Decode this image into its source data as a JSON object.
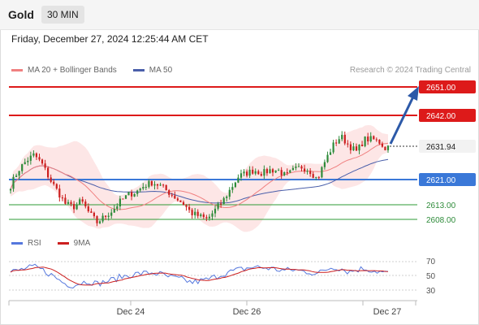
{
  "header": {
    "symbol": "Gold",
    "timeframe": "30 MIN"
  },
  "datetime": "Friday, December 27, 2024 12:25:44 AM CET",
  "legend": {
    "ma20": "MA 20 + Bollinger Bands",
    "ma50": "MA 50",
    "credit": "Research © 2024 Trading Central"
  },
  "rsi_legend": {
    "rsi": "RSI",
    "ma": "9MA"
  },
  "colors": {
    "up": "#2e8b3a",
    "down": "#cc1f1f",
    "resistance": "#dd1a1a",
    "pivot": "#3a78d8",
    "support": "#2e9b35",
    "ma20": "#f08080",
    "ma50": "#4a5faa",
    "band": "#fde2e2",
    "rsi": "#5577dd",
    "rsi_ma": "#cc1f1f",
    "arrow": "#2c59a8"
  },
  "levels": {
    "r2": "2651.00",
    "r1": "2642.00",
    "current": "2631.94",
    "pivot": "2621.00",
    "s1": "2613.00",
    "s2": "2608.00"
  },
  "x_labels": [
    "Dec 24",
    "Dec 26",
    "Dec 27"
  ],
  "rsi_ticks": [
    "70",
    "50",
    "30"
  ],
  "chart_data": {
    "type": "candlestick",
    "y_unit": "USD",
    "ylim": [
      2604,
      2653
    ],
    "price_levels": [
      2651.0,
      2642.0,
      2631.94,
      2621.0,
      2613.0,
      2608.0
    ],
    "close_path": [
      2619,
      2624,
      2627,
      2629,
      2626,
      2621,
      2617,
      2613,
      2612,
      2614,
      2610,
      2607,
      2609,
      2611,
      2614,
      2616,
      2617,
      2619,
      2620,
      2619,
      2617,
      2615,
      2613,
      2610,
      2609,
      2608,
      2611,
      2614,
      2618,
      2622,
      2623,
      2624,
      2623,
      2624,
      2624,
      2622,
      2624,
      2625,
      2624,
      2621,
      2627,
      2632,
      2635,
      2632,
      2630,
      2634,
      2634,
      2633,
      2630
    ],
    "rsi": {
      "ylim": [
        25,
        75
      ],
      "ticks": [
        70,
        50,
        30
      ],
      "values": [
        55,
        57,
        60,
        62,
        58,
        52,
        45,
        38,
        36,
        40,
        42,
        38,
        41,
        44,
        48,
        50,
        52,
        53,
        54,
        52,
        48,
        46,
        44,
        40,
        42,
        44,
        48,
        52,
        55,
        58,
        60,
        62,
        61,
        60,
        58,
        57,
        58,
        56,
        55,
        52,
        58,
        62,
        60,
        55,
        58,
        60,
        57,
        55,
        53
      ]
    },
    "x_labels": [
      "Dec 24",
      "Dec 26",
      "Dec 27"
    ]
  }
}
